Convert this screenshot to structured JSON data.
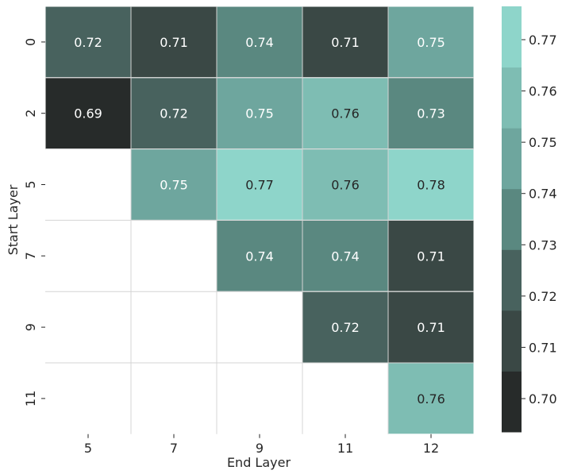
{
  "chart_data": {
    "type": "heatmap",
    "title": "",
    "xlabel": "End Layer",
    "ylabel": "Start Layer",
    "x_categories": [
      "5",
      "7",
      "9",
      "11",
      "12"
    ],
    "y_categories": [
      "0",
      "2",
      "5",
      "7",
      "9",
      "11"
    ],
    "values": [
      [
        0.72,
        0.71,
        0.74,
        0.71,
        0.75
      ],
      [
        0.69,
        0.72,
        0.75,
        0.76,
        0.73
      ],
      [
        null,
        0.75,
        0.77,
        0.76,
        0.78
      ],
      [
        null,
        null,
        0.74,
        0.74,
        0.71
      ],
      [
        null,
        null,
        null,
        0.72,
        0.71
      ],
      [
        null,
        null,
        null,
        null,
        0.76
      ]
    ],
    "colorbar": {
      "min": 0.6935,
      "max": 0.7765,
      "ticks": [
        "0.70",
        "0.71",
        "0.72",
        "0.73",
        "0.74",
        "0.75",
        "0.76",
        "0.77"
      ],
      "colors": [
        "#272b2a",
        "#3a4845",
        "#48625e",
        "#5a8880",
        "#6ea69e",
        "#7ebdb3",
        "#8ed5ca"
      ]
    },
    "light_text_threshold": 0.755,
    "label_colors": {
      "light": "#ffffff",
      "dark": "#262626"
    }
  }
}
